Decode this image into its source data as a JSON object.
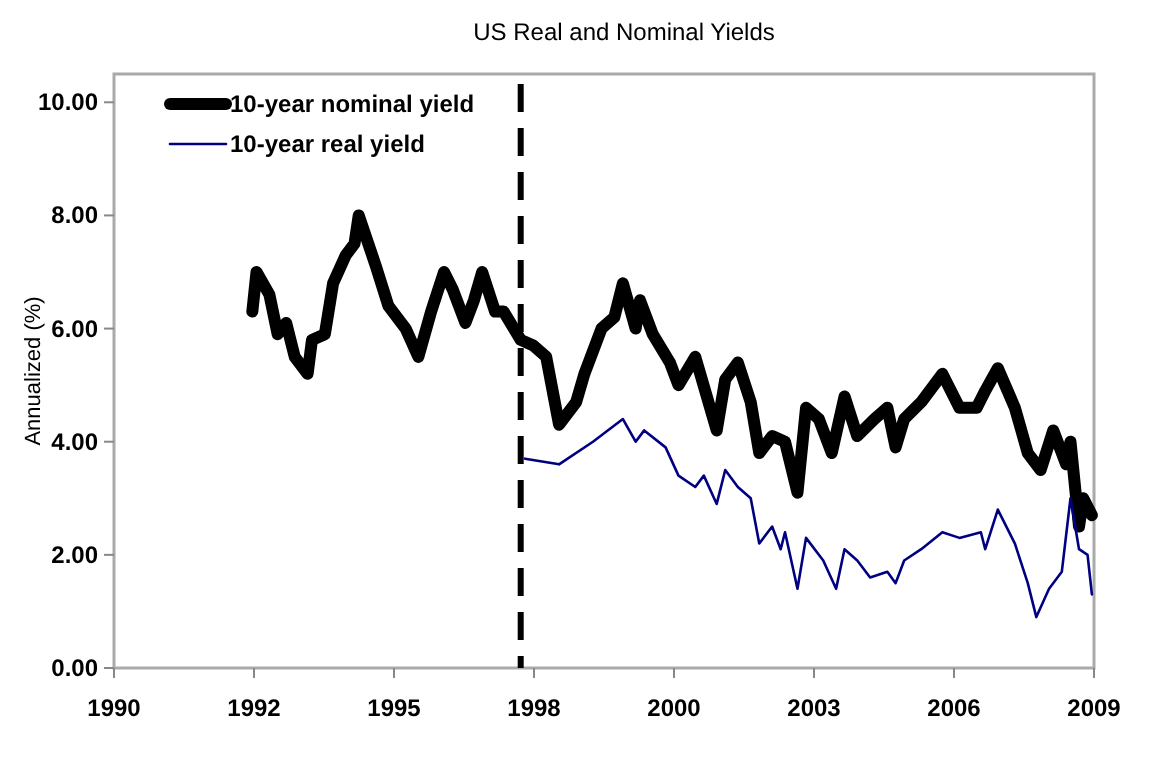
{
  "chart_data": {
    "type": "line",
    "title": "US Real and Nominal Yields",
    "ylabel": "Annualized (%)",
    "xlim": [
      "1990-01-01",
      "2009-03-02"
    ],
    "xticks": [
      {
        "value": "1990-01-01",
        "label": "1990"
      },
      {
        "value": "1992-09-27",
        "label": "1992"
      },
      {
        "value": "1995-06-24",
        "label": "1995"
      },
      {
        "value": "1998-03-20",
        "label": "1998"
      },
      {
        "value": "2000-12-14",
        "label": "2000"
      },
      {
        "value": "2003-09-10",
        "label": "2003"
      },
      {
        "value": "2006-06-06",
        "label": "2006"
      },
      {
        "value": "2009-03-02",
        "label": "2009"
      }
    ],
    "ylim": [
      0,
      10.5
    ],
    "yticks": [
      {
        "value": 0,
        "label": "0.00"
      },
      {
        "value": 2,
        "label": "2.00"
      },
      {
        "value": 4,
        "label": "4.00"
      },
      {
        "value": 6,
        "label": "6.00"
      },
      {
        "value": 8,
        "label": "8.00"
      },
      {
        "value": 10,
        "label": "10.00"
      }
    ],
    "grid": false,
    "legend": "top left",
    "line_style": "solid",
    "ref_lines": [
      {
        "axis": "x",
        "value": "1997-12-15",
        "color": "#000000",
        "line_style": "dashed"
      }
    ],
    "series": [
      {
        "name": "10-year nominal yield",
        "color": "#000000",
        "x": [
          "1992-09",
          "1992-10",
          "1993-01",
          "1993-03",
          "1993-05",
          "1993-07",
          "1993-10",
          "1993-11",
          "1994-02",
          "1994-04",
          "1994-07",
          "1994-09",
          "1994-10",
          "1995-02",
          "1995-05",
          "1995-09",
          "1995-12",
          "1996-03",
          "1996-06",
          "1996-08",
          "1996-11",
          "1997-01",
          "1997-03",
          "1997-06",
          "1997-08",
          "1997-12",
          "1998-03",
          "1998-06",
          "1998-09",
          "1999-01",
          "1999-03",
          "1999-07",
          "1999-10",
          "1999-12",
          "2000-03",
          "2000-04",
          "2000-07",
          "2000-11",
          "2001-01",
          "2001-05",
          "2001-10",
          "2001-12",
          "2002-03",
          "2002-06",
          "2002-08",
          "2002-11",
          "2003-02",
          "2003-05",
          "2003-07",
          "2003-10",
          "2004-01",
          "2004-04",
          "2004-07",
          "2004-11",
          "2005-02",
          "2005-04",
          "2005-06",
          "2005-10",
          "2006-03",
          "2006-07",
          "2006-11",
          "2007-01",
          "2007-04",
          "2007-08",
          "2007-11",
          "2008-02",
          "2008-05",
          "2008-08",
          "2008-09",
          "2008-11",
          "2008-12",
          "2009-02"
        ],
        "values": [
          6.3,
          7.0,
          6.6,
          5.9,
          6.1,
          5.5,
          5.2,
          5.8,
          5.9,
          6.8,
          7.3,
          7.5,
          8.0,
          7.1,
          6.4,
          6.0,
          5.5,
          6.3,
          7.0,
          6.7,
          6.1,
          6.5,
          7.0,
          6.3,
          6.3,
          5.8,
          5.7,
          5.5,
          4.3,
          4.7,
          5.2,
          6.0,
          6.2,
          6.8,
          6.0,
          6.5,
          5.9,
          5.4,
          5.0,
          5.5,
          4.2,
          5.1,
          5.4,
          4.7,
          3.8,
          4.1,
          4.0,
          3.1,
          4.6,
          4.4,
          3.8,
          4.8,
          4.1,
          4.4,
          4.6,
          3.9,
          4.4,
          4.7,
          5.2,
          4.6,
          4.6,
          4.9,
          5.3,
          4.6,
          3.8,
          3.5,
          4.2,
          3.6,
          4.0,
          2.5,
          3.0,
          2.7
        ]
      },
      {
        "name": "10-year real yield",
        "color": "#000080",
        "x": [
          "1998-01",
          "1998-09",
          "1999-05",
          "1999-12",
          "2000-03",
          "2000-05",
          "2000-10",
          "2001-01",
          "2001-05",
          "2001-07",
          "2001-10",
          "2001-12",
          "2002-03",
          "2002-06",
          "2002-08",
          "2002-11",
          "2003-01",
          "2003-02",
          "2003-05",
          "2003-07",
          "2003-11",
          "2004-02",
          "2004-04",
          "2004-07",
          "2004-10",
          "2005-02",
          "2005-04",
          "2005-06",
          "2005-10",
          "2006-03",
          "2006-07",
          "2006-12",
          "2007-01",
          "2007-04",
          "2007-08",
          "2007-11",
          "2008-01",
          "2008-04",
          "2008-07",
          "2008-09",
          "2008-11",
          "2009-01",
          "2009-02"
        ],
        "values": [
          3.7,
          3.6,
          4.0,
          4.4,
          4.0,
          4.2,
          3.9,
          3.4,
          3.2,
          3.4,
          2.9,
          3.5,
          3.2,
          3.0,
          2.2,
          2.5,
          2.1,
          2.4,
          1.4,
          2.3,
          1.9,
          1.4,
          2.1,
          1.9,
          1.6,
          1.7,
          1.5,
          1.9,
          2.1,
          2.4,
          2.3,
          2.4,
          2.1,
          2.8,
          2.2,
          1.5,
          0.9,
          1.4,
          1.7,
          3.0,
          2.1,
          2.0,
          1.3
        ]
      }
    ]
  }
}
